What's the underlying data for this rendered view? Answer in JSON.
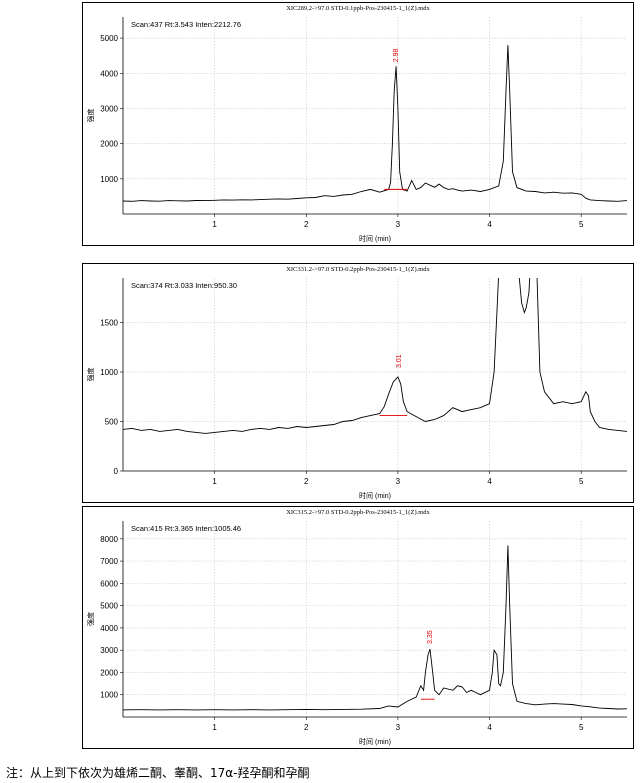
{
  "chart_data": [
    {
      "type": "line",
      "title": "XIC289.2->97.0 STD-0.1ppb-Pos-230415-1_1(Z).mdx",
      "info": "Scan:437  Rt:3.543  Inten:2212.76",
      "xlabel": "时间 (min)",
      "ylabel": "强度",
      "xlim": [
        0,
        5.5
      ],
      "ylim": [
        0,
        5600
      ],
      "xticks": [
        1,
        2,
        3,
        4,
        5
      ],
      "yticks": [
        1000,
        2000,
        3000,
        4000,
        5000
      ],
      "grid": true,
      "peak_label": {
        "text": "2.98",
        "x": 2.98,
        "y": 4200
      },
      "baseline_segment": {
        "x": [
          2.85,
          3.1
        ],
        "y": [
          700,
          700
        ]
      },
      "series": [
        {
          "x": [
            0,
            0.1,
            0.2,
            0.3,
            0.4,
            0.5,
            0.6,
            0.7,
            0.8,
            0.9,
            1.0,
            1.1,
            1.2,
            1.3,
            1.4,
            1.5,
            1.6,
            1.7,
            1.8,
            1.9,
            2.0,
            2.1,
            2.2,
            2.3,
            2.4,
            2.5,
            2.6,
            2.7,
            2.8,
            2.9,
            2.92,
            2.94,
            2.96,
            2.98,
            3.0,
            3.02,
            3.05,
            3.1,
            3.15,
            3.2,
            3.25,
            3.3,
            3.35,
            3.4,
            3.45,
            3.5,
            3.55,
            3.6,
            3.65,
            3.7,
            3.8,
            3.9,
            4.0,
            4.1,
            4.15,
            4.18,
            4.2,
            4.22,
            4.25,
            4.3,
            4.4,
            4.5,
            4.6,
            4.7,
            4.8,
            4.9,
            5.0,
            5.05,
            5.1,
            5.2,
            5.3,
            5.4,
            5.5
          ],
          "y": [
            370,
            360,
            380,
            370,
            365,
            380,
            375,
            370,
            385,
            380,
            390,
            400,
            395,
            405,
            400,
            410,
            420,
            430,
            420,
            440,
            460,
            470,
            520,
            500,
            540,
            560,
            640,
            700,
            620,
            700,
            900,
            2000,
            3500,
            4200,
            3000,
            1200,
            700,
            650,
            950,
            700,
            750,
            880,
            820,
            760,
            850,
            750,
            700,
            720,
            680,
            650,
            680,
            640,
            700,
            800,
            1500,
            3500,
            4800,
            3500,
            1200,
            750,
            650,
            640,
            600,
            620,
            590,
            600,
            560,
            450,
            400,
            380,
            370,
            360,
            380
          ]
        }
      ]
    },
    {
      "type": "line",
      "title": "XIC331.2->97.0 STD-0.2ppb-Pos-230415-1_1(Z).mdx",
      "info": "Scan:374  Rt:3.033  Inten:950.30",
      "xlabel": "时间 (min)",
      "ylabel": "强度",
      "xlim": [
        0,
        5.5
      ],
      "ylim": [
        0,
        1950
      ],
      "xticks": [
        1,
        2,
        3,
        4,
        5
      ],
      "yticks": [
        0,
        500,
        1000,
        1500
      ],
      "grid": true,
      "peak_label": {
        "text": "3.01",
        "x": 3.01,
        "y": 1000
      },
      "baseline_segment": {
        "x": [
          2.8,
          3.1
        ],
        "y": [
          560,
          560
        ]
      },
      "series": [
        {
          "x": [
            0,
            0.1,
            0.2,
            0.3,
            0.4,
            0.5,
            0.6,
            0.7,
            0.8,
            0.9,
            1.0,
            1.1,
            1.2,
            1.3,
            1.4,
            1.5,
            1.6,
            1.7,
            1.8,
            1.9,
            2.0,
            2.1,
            2.2,
            2.3,
            2.4,
            2.5,
            2.6,
            2.7,
            2.8,
            2.85,
            2.9,
            2.95,
            3.0,
            3.03,
            3.06,
            3.1,
            3.2,
            3.3,
            3.4,
            3.5,
            3.6,
            3.7,
            3.8,
            3.9,
            4.0,
            4.05,
            4.08,
            4.1,
            4.12,
            4.2,
            4.3,
            4.35,
            4.38,
            4.4,
            4.43,
            4.46,
            4.5,
            4.55,
            4.6,
            4.7,
            4.8,
            4.9,
            5.0,
            5.05,
            5.08,
            5.1,
            5.15,
            5.2,
            5.3,
            5.4,
            5.5
          ],
          "y": [
            420,
            430,
            410,
            420,
            400,
            410,
            420,
            400,
            390,
            380,
            390,
            400,
            410,
            400,
            420,
            430,
            420,
            440,
            430,
            450,
            440,
            450,
            460,
            470,
            500,
            510,
            540,
            560,
            580,
            650,
            780,
            900,
            950,
            880,
            700,
            600,
            550,
            500,
            520,
            560,
            640,
            600,
            620,
            640,
            680,
            1000,
            1600,
            2000,
            2400,
            2600,
            2200,
            1700,
            1600,
            1650,
            1800,
            2300,
            2500,
            1000,
            800,
            680,
            700,
            680,
            700,
            800,
            760,
            600,
            500,
            440,
            420,
            410,
            400
          ]
        }
      ]
    },
    {
      "type": "line",
      "title": "XIC315.2->97.0 STD-0.2ppb-Pos-230415-1_1(Z).mdx",
      "info": "Scan:415  Rt:3.365  Inten:1005.46",
      "xlabel": "时间 (min)",
      "ylabel": "强度",
      "xlim": [
        0,
        5.5
      ],
      "ylim": [
        0,
        8800
      ],
      "xticks": [
        1,
        2,
        3,
        4,
        5
      ],
      "yticks": [
        1000,
        2000,
        3000,
        4000,
        5000,
        6000,
        7000,
        8000
      ],
      "grid": true,
      "peak_label": {
        "text": "3.35",
        "x": 3.35,
        "y": 3100
      },
      "baseline_segment": {
        "x": [
          3.25,
          3.4
        ],
        "y": [
          800,
          800
        ]
      },
      "series": [
        {
          "x": [
            0,
            0.2,
            0.4,
            0.6,
            0.8,
            1.0,
            1.2,
            1.4,
            1.6,
            1.8,
            2.0,
            2.2,
            2.4,
            2.6,
            2.8,
            2.9,
            3.0,
            3.1,
            3.2,
            3.25,
            3.28,
            3.3,
            3.33,
            3.35,
            3.38,
            3.4,
            3.45,
            3.5,
            3.6,
            3.65,
            3.7,
            3.75,
            3.8,
            3.85,
            3.9,
            4.0,
            4.03,
            4.05,
            4.08,
            4.1,
            4.12,
            4.15,
            4.18,
            4.2,
            4.22,
            4.25,
            4.3,
            4.4,
            4.5,
            4.6,
            4.7,
            4.8,
            4.9,
            5.0,
            5.1,
            5.2,
            5.3,
            5.4,
            5.5
          ],
          "y": [
            320,
            330,
            320,
            330,
            320,
            330,
            320,
            330,
            320,
            330,
            340,
            330,
            340,
            350,
            380,
            500,
            450,
            700,
            900,
            1400,
            1200,
            2000,
            2800,
            3050,
            2000,
            1200,
            1000,
            1300,
            1200,
            1400,
            1350,
            1100,
            1200,
            1100,
            1000,
            1200,
            2000,
            3000,
            2800,
            1500,
            1400,
            2000,
            5000,
            7700,
            5000,
            1500,
            700,
            600,
            550,
            580,
            600,
            580,
            560,
            500,
            460,
            400,
            380,
            360,
            370
          ]
        }
      ]
    }
  ],
  "footnote": "注：从上到下依次为雄烯二酮、睾酮、17α-羟孕酮和孕酮"
}
